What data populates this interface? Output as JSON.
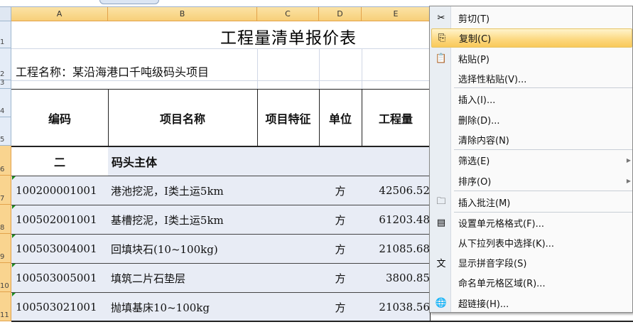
{
  "columns": [
    "A",
    "B",
    "C",
    "D",
    "E"
  ],
  "rows": [
    "1",
    "2",
    "3",
    "4",
    "5",
    "6",
    "7",
    "8",
    "9",
    "10",
    "11"
  ],
  "title": "工程量清单报价表",
  "project_name": "工程名称：某沿海港口千吨级码头项目",
  "headers": {
    "code": "编码",
    "name": "项目名称",
    "feature": "项目特征",
    "unit": "单位",
    "quantity": "工程量"
  },
  "section": {
    "code": "二",
    "name": "码头主体"
  },
  "items": [
    {
      "code": "100200001001",
      "name": "港池挖泥，I类土运5km",
      "unit": "方",
      "quantity": "42506.52"
    },
    {
      "code": "100502001001",
      "name": "基槽挖泥，I类土运5km",
      "unit": "方",
      "quantity": "61203.48"
    },
    {
      "code": "100503004001",
      "name": "回填块石(10~100kg)",
      "unit": "方",
      "quantity": "21085.68"
    },
    {
      "code": "100503005001",
      "name": "填筑二片石垫层",
      "unit": "方",
      "quantity": "3800.85"
    },
    {
      "code": "100503021001",
      "name": "抛填基床10~100kg",
      "unit": "方",
      "quantity": "21038.56"
    }
  ],
  "context_menu": {
    "items": [
      {
        "label": "剪切(T)",
        "icon": "scissors-icon"
      },
      {
        "label": "复制(C)",
        "icon": "copy-icon",
        "highlighted": true
      },
      {
        "label": "粘贴(P)",
        "icon": "paste-icon"
      },
      {
        "label": "选择性粘贴(V)..."
      },
      {
        "label": "插入(I)..."
      },
      {
        "label": "删除(D)..."
      },
      {
        "label": "清除内容(N)"
      },
      {
        "label": "筛选(E)",
        "submenu": true
      },
      {
        "label": "排序(O)",
        "submenu": true
      },
      {
        "label": "插入批注(M)",
        "icon": "comment-icon"
      },
      {
        "label": "设置单元格格式(F)...",
        "icon": "format-cells-icon"
      },
      {
        "label": "从下拉列表中选择(K)..."
      },
      {
        "label": "显示拼音字段(S)",
        "icon": "phonetic-icon"
      },
      {
        "label": "命名单元格区域(R)..."
      },
      {
        "label": "超链接(H)...",
        "icon": "hyperlink-icon"
      }
    ]
  },
  "colors": {
    "highlight": "#fcd77d",
    "selected_header": "#f9d48f",
    "data_fill": "#e8ecf5"
  }
}
